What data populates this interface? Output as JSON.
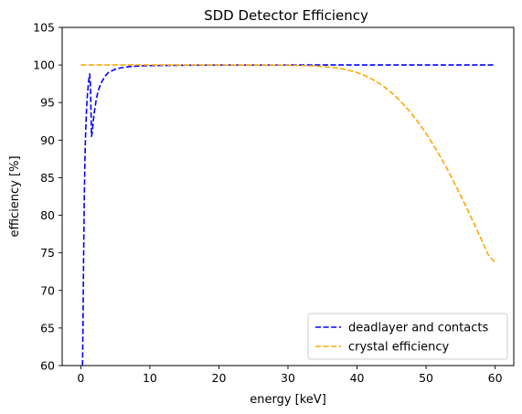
{
  "chart_data": {
    "type": "line",
    "title": "SDD Detector Efficiency",
    "xlabel": "energy [keV]",
    "ylabel": "efficiency [%]",
    "xlim": [
      -2.7,
      62.7
    ],
    "ylim": [
      60,
      105
    ],
    "xticks": [
      0,
      10,
      20,
      30,
      40,
      50,
      60
    ],
    "yticks": [
      60,
      65,
      70,
      75,
      80,
      85,
      90,
      95,
      100,
      105
    ],
    "xtick_labels": [
      "0",
      "10",
      "20",
      "30",
      "40",
      "50",
      "60"
    ],
    "ytick_labels": [
      "60",
      "65",
      "70",
      "75",
      "80",
      "85",
      "90",
      "95",
      "100",
      "105"
    ],
    "grid": false,
    "legend_position": "lower-right",
    "series": [
      {
        "name": "deadlayer and contacts",
        "color": "#0000ff",
        "style": "dashed",
        "x": [
          0.25,
          0.3,
          0.4,
          0.5,
          0.6,
          0.7,
          0.8,
          0.9,
          1.0,
          1.1,
          1.2,
          1.3,
          1.4,
          1.5,
          1.55,
          1.6,
          1.7,
          1.8,
          1.9,
          2.0,
          2.2,
          2.4,
          2.6,
          2.8,
          3.0,
          3.5,
          4.0,
          5.0,
          6.0,
          7.0,
          8.0,
          10.0,
          15.0,
          20.0,
          30.0,
          40.0,
          50.0,
          60.0
        ],
        "y": [
          60.0,
          64.0,
          74.0,
          82.0,
          87.5,
          91.0,
          93.5,
          95.3,
          96.5,
          97.5,
          98.3,
          98.8,
          97.0,
          93.0,
          90.5,
          90.7,
          91.5,
          92.5,
          93.3,
          94.0,
          95.2,
          96.1,
          96.8,
          97.3,
          97.7,
          98.5,
          99.0,
          99.45,
          99.65,
          99.78,
          99.85,
          99.92,
          99.97,
          99.99,
          100.0,
          100.0,
          100.0,
          100.0
        ]
      },
      {
        "name": "crystal efficiency",
        "color": "#ffa500",
        "style": "dashed",
        "x": [
          0,
          5,
          10,
          15,
          20,
          25,
          30,
          32,
          34,
          36,
          37,
          38,
          39,
          40,
          41,
          42,
          43,
          44,
          45,
          46,
          47,
          48,
          49,
          50,
          51,
          52,
          53,
          54,
          55,
          56,
          57,
          58,
          59,
          60
        ],
        "y": [
          100.0,
          100.0,
          100.0,
          100.0,
          100.0,
          99.99,
          99.97,
          99.93,
          99.86,
          99.72,
          99.6,
          99.45,
          99.25,
          99.0,
          98.65,
          98.2,
          97.7,
          97.05,
          96.3,
          95.45,
          94.5,
          93.4,
          92.2,
          90.9,
          89.45,
          87.9,
          86.25,
          84.5,
          82.65,
          80.75,
          78.8,
          76.8,
          74.75,
          73.7
        ]
      }
    ]
  }
}
